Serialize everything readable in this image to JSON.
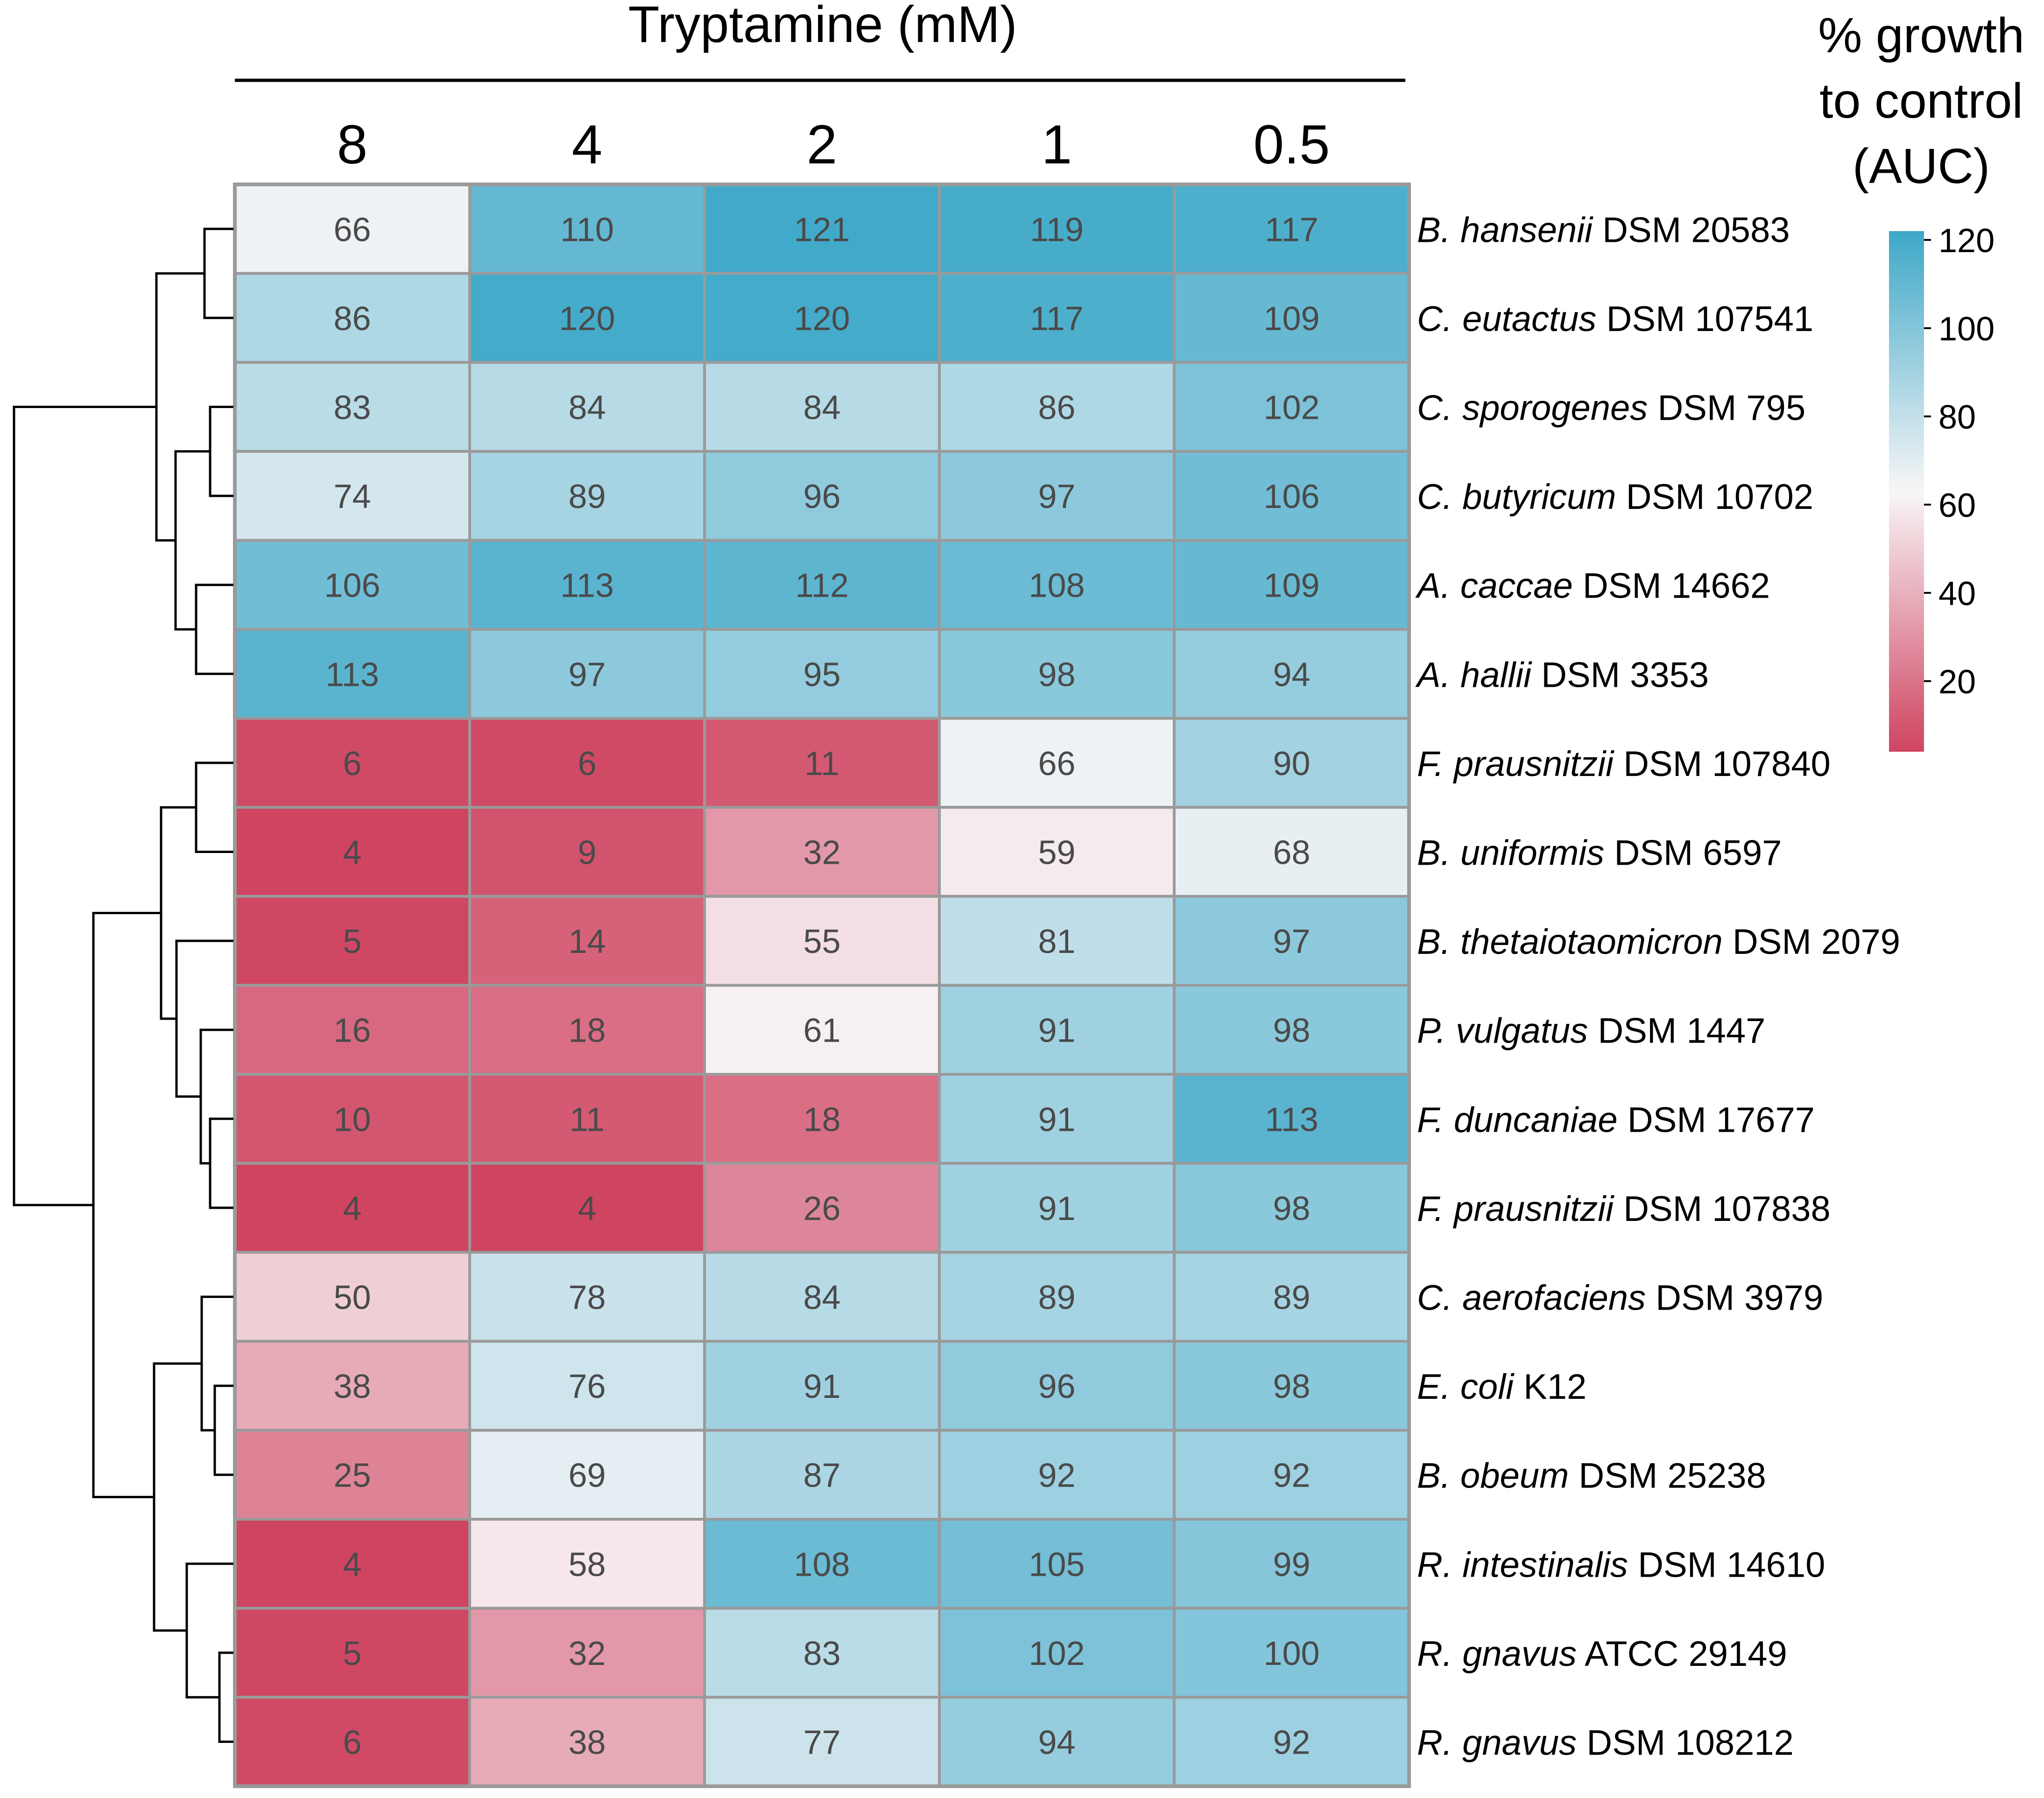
{
  "chart_data": {
    "type": "heatmap",
    "title": "Tryptamine (mM)",
    "columns": [
      "8",
      "4",
      "2",
      "1",
      "0.5"
    ],
    "rows": [
      {
        "species": "B. hansenii",
        "strain": "DSM 20583",
        "values": [
          66,
          110,
          121,
          119,
          117
        ]
      },
      {
        "species": "C. eutactus",
        "strain": "DSM 107541",
        "values": [
          86,
          120,
          120,
          117,
          109
        ]
      },
      {
        "species": "C. sporogenes",
        "strain": "DSM 795",
        "values": [
          83,
          84,
          84,
          86,
          102
        ]
      },
      {
        "species": "C. butyricum",
        "strain": "DSM 10702",
        "values": [
          74,
          89,
          96,
          97,
          106
        ]
      },
      {
        "species": "A. caccae",
        "strain": "DSM 14662",
        "values": [
          106,
          113,
          112,
          108,
          109
        ]
      },
      {
        "species": "A. hallii",
        "strain": "DSM 3353",
        "values": [
          113,
          97,
          95,
          98,
          94
        ]
      },
      {
        "species": "F. prausnitzii",
        "strain": "DSM 107840",
        "values": [
          6,
          6,
          11,
          66,
          90
        ]
      },
      {
        "species": "B. uniformis",
        "strain": "DSM 6597",
        "values": [
          4,
          9,
          32,
          59,
          68
        ]
      },
      {
        "species": "B. thetaiotaomicron",
        "strain": "DSM 2079",
        "values": [
          5,
          14,
          55,
          81,
          97
        ]
      },
      {
        "species": "P. vulgatus",
        "strain": "DSM 1447",
        "values": [
          16,
          18,
          61,
          91,
          98
        ]
      },
      {
        "species": "F. duncaniae",
        "strain": "DSM 17677",
        "values": [
          10,
          11,
          18,
          91,
          113
        ]
      },
      {
        "species": "F. prausnitzii",
        "strain": "DSM 107838",
        "values": [
          4,
          4,
          26,
          91,
          98
        ]
      },
      {
        "species": "C. aerofaciens",
        "strain": "DSM 3979",
        "values": [
          50,
          78,
          84,
          89,
          89
        ]
      },
      {
        "species": "E. coli",
        "strain": "K12",
        "values": [
          38,
          76,
          91,
          96,
          98
        ]
      },
      {
        "species": "B. obeum",
        "strain": "DSM 25238",
        "values": [
          25,
          69,
          87,
          92,
          92
        ]
      },
      {
        "species": "R. intestinalis",
        "strain": "DSM 14610",
        "values": [
          4,
          58,
          108,
          105,
          99
        ]
      },
      {
        "species": "R. gnavus",
        "strain": "ATCC 29149",
        "values": [
          5,
          32,
          83,
          102,
          100
        ]
      },
      {
        "species": "R. gnavus",
        "strain": "DSM 108212",
        "values": [
          6,
          38,
          77,
          94,
          92
        ]
      }
    ],
    "colorbar": {
      "title": [
        "% growth",
        "to control",
        "(AUC)"
      ],
      "ticks": [
        20,
        40,
        60,
        80,
        100,
        120
      ],
      "range": [
        4,
        122
      ],
      "low_color": "#cf4461",
      "mid_color": "#f8f6f7",
      "high_color": "#3ea8c8",
      "mid_value": 63
    },
    "dendrogram": "row clustering tree on the left (topology only)"
  }
}
